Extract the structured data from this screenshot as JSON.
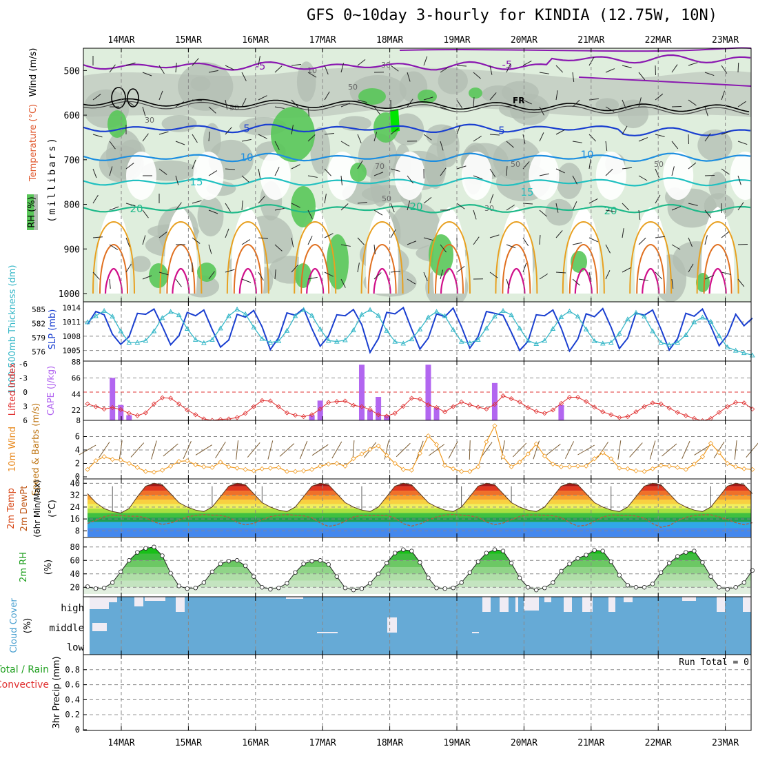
{
  "title": "GFS 0~10day 3-hourly for KINDIA (12.75W, 10N)",
  "colors": {
    "rh_light": "#dfeedd",
    "rh_gray": "#b2bcb2",
    "rh_green": "#59c659",
    "rh_bright": "#00e600",
    "purple": "#8a18b0",
    "blue_dark": "#1a3fd0",
    "blue_mid": "#1c8ee0",
    "cyan": "#20c0c0",
    "teal": "#20b98a",
    "orange": "#e8a020",
    "orange_dark": "#e07020",
    "magenta": "#d0108a",
    "slp": "#1a3fd0",
    "thickness": "#38b8c8",
    "cape": "#b266f0",
    "lifted": "#e03030",
    "wind": "#f09a20",
    "cloud": "#66aad6",
    "cloud_gap": "#f0ecf4"
  },
  "chart_data": [
    {
      "id": "upper_air",
      "type": "contour",
      "ylabel": "(millibars)",
      "legend": [
        "RH (%)",
        "Temperature (°C)",
        "Wind (m/s)"
      ],
      "yticks": [
        500,
        600,
        700,
        800,
        900,
        1000
      ],
      "ylim": [
        1000,
        450
      ],
      "rh_contour_labels": [
        "10",
        "30",
        "50",
        "70"
      ],
      "freezing_label": "FR",
      "isotherms": [
        {
          "label": "-5",
          "pressure_mb": 490
        },
        {
          "label": "5",
          "pressure_mb": 630
        },
        {
          "label": "10",
          "pressure_mb": 695
        },
        {
          "label": "15",
          "pressure_mb": 750
        },
        {
          "label": "20",
          "pressure_mb": 810
        }
      ]
    },
    {
      "id": "slp_thickness",
      "type": "line",
      "ylabel_left": "1000-500mb Thickness (dm)",
      "ylabel_right": "SLP (mb)",
      "yticks_left": [
        576,
        579,
        582,
        585
      ],
      "yticks_right": [
        1005,
        1008,
        1011,
        1014
      ],
      "series": [
        {
          "name": "SLP (mb)",
          "values": [
            1010.5,
            1013.2,
            1012.5,
            1008.4,
            1006.3,
            1007.9,
            1012.8,
            1012.6,
            1013.7,
            1010.1,
            1006.2,
            1008.1,
            1013.0,
            1012.3,
            1013.5,
            1009.4,
            1005.7,
            1007.2,
            1012.6,
            1012.0,
            1013.4,
            1010.0,
            1005.2,
            1007.7,
            1012.9,
            1012.4,
            1013.8,
            1009.6,
            1005.9,
            1008.0,
            1012.5,
            1012.3,
            1013.6,
            1010.4,
            1004.6,
            1007.5,
            1013.0,
            1012.7,
            1014.0,
            1009.5,
            1005.3,
            1007.6,
            1012.7,
            1012.1,
            1013.9,
            1010.0,
            1005.5,
            1007.9,
            1013.2,
            1012.8,
            1012.4,
            1008.8,
            1005.0,
            1006.9,
            1012.5,
            1012.3,
            1013.5,
            1009.7,
            1004.9,
            1007.4,
            1012.7,
            1012.1,
            1013.8,
            1009.9,
            1005.4,
            1007.6,
            1012.9,
            1012.4,
            1013.5,
            1009.5,
            1005.1,
            1007.5,
            1012.8,
            1012.2,
            1013.7,
            1010.1,
            1006.0,
            1008.2,
            1012.6,
            1010.2,
            1011.8
          ]
        },
        {
          "name": "1000-500mb Thickness (dm)",
          "values": [
            582.3,
            583.6,
            584.7,
            583.5,
            580.4,
            578.0,
            578.0,
            578.4,
            580.4,
            583.2,
            584.5,
            583.8,
            580.9,
            578.6,
            577.9,
            578.6,
            581.0,
            583.6,
            585.0,
            584.0,
            581.2,
            578.8,
            578.0,
            578.3,
            580.5,
            583.6,
            584.9,
            583.7,
            580.8,
            578.4,
            578.2,
            578.5,
            580.6,
            583.9,
            584.9,
            583.7,
            580.5,
            578.2,
            577.8,
            578.7,
            580.8,
            583.3,
            584.5,
            583.6,
            580.7,
            578.2,
            577.9,
            578.6,
            581.0,
            583.5,
            584.7,
            583.8,
            581.0,
            578.4,
            577.7,
            578.4,
            580.9,
            583.4,
            584.6,
            583.5,
            580.8,
            578.3,
            577.8,
            578.0,
            579.9,
            582.9,
            584.3,
            583.5,
            580.4,
            578.0,
            577.5,
            578.0,
            579.6,
            582.3,
            583.3,
            582.4,
            579.4,
            577.0,
            576.3,
            575.8,
            575.3
          ]
        }
      ]
    },
    {
      "id": "cape_li",
      "type": "bar+line",
      "ylabel_left": "Lifted Index",
      "ylabel_right": "CAPE (J/kg)",
      "yticks_left": [
        "-6",
        "-3",
        "0",
        "3",
        "6"
      ],
      "yticks_right": [
        8,
        22,
        44,
        66,
        88
      ],
      "cape_bars": [
        {
          "step": 3,
          "value": 66
        },
        {
          "step": 4,
          "value": 29
        },
        {
          "step": 5,
          "value": 15
        },
        {
          "step": 27,
          "value": 15
        },
        {
          "step": 28,
          "value": 35
        },
        {
          "step": 33,
          "value": 84
        },
        {
          "step": 34,
          "value": 22
        },
        {
          "step": 35,
          "value": 40
        },
        {
          "step": 36,
          "value": 15
        },
        {
          "step": 41,
          "value": 84
        },
        {
          "step": 42,
          "value": 25
        },
        {
          "step": 49,
          "value": 59
        },
        {
          "step": 57,
          "value": 29
        }
      ],
      "series": [
        {
          "name": "Lifted Index",
          "values": [
            2.5,
            3.1,
            3.6,
            3.3,
            3.7,
            4.5,
            5.0,
            4.4,
            2.5,
            1.2,
            1.3,
            2.5,
            3.8,
            4.8,
            5.7,
            6.0,
            5.8,
            5.7,
            5.4,
            4.5,
            3.1,
            1.8,
            1.9,
            3.1,
            4.4,
            4.9,
            5.2,
            4.8,
            3.6,
            2.2,
            2.0,
            1.9,
            2.8,
            3.1,
            3.7,
            4.8,
            5.1,
            4.5,
            3.0,
            1.3,
            1.5,
            2.7,
            3.3,
            4.2,
            3.1,
            2.1,
            2.7,
            3.2,
            3.6,
            2.6,
            0.8,
            1.4,
            2.1,
            3.3,
            4.1,
            4.5,
            3.8,
            2.4,
            1.1,
            1.1,
            2.0,
            3.2,
            4.2,
            4.8,
            5.4,
            5.2,
            4.2,
            3.1,
            2.3,
            2.5,
            3.4,
            4.3,
            5.0,
            5.6,
            6.1,
            5.6,
            4.3,
            3.1,
            2.2,
            2.3,
            3.6
          ]
        }
      ]
    },
    {
      "id": "wind10m",
      "type": "line",
      "ylabel": "10m Wind Speed & Barbs (m/s)",
      "yticks": [
        0,
        2,
        4,
        6
      ],
      "ylim": [
        0,
        8
      ],
      "series": [
        {
          "name": "10m Wind Speed (m/s)",
          "values": [
            1.1,
            2.4,
            3.0,
            2.6,
            2.5,
            2.0,
            1.4,
            0.8,
            0.7,
            1.0,
            1.6,
            2.3,
            2.4,
            1.8,
            1.5,
            1.4,
            2.2,
            1.5,
            1.3,
            1.1,
            0.9,
            1.2,
            1.3,
            1.4,
            0.8,
            0.8,
            0.9,
            1.1,
            1.6,
            1.9,
            2.0,
            1.6,
            2.7,
            3.4,
            4.1,
            4.6,
            3.2,
            2.0,
            1.1,
            1.0,
            3.5,
            6.1,
            4.8,
            1.7,
            1.2,
            0.8,
            0.8,
            1.5,
            5.2,
            7.6,
            3.0,
            1.5,
            2.2,
            3.4,
            4.9,
            3.1,
            1.9,
            1.5,
            1.5,
            1.6,
            1.6,
            2.7,
            3.6,
            2.7,
            1.3,
            1.2,
            0.9,
            0.8,
            1.2,
            1.7,
            1.6,
            1.4,
            1.1,
            1.9,
            3.0,
            5.0,
            3.6,
            2.0,
            1.5,
            1.2,
            1.1
          ]
        }
      ]
    },
    {
      "id": "temp2m",
      "type": "area",
      "ylabel": "2m Temp 2m DewPt (6hr Min/Max) (°C)",
      "yticks": [
        8,
        16,
        24,
        32,
        40
      ],
      "ylim": [
        4,
        42
      ],
      "series": [
        {
          "name": "2m Temp (°C)",
          "values": [
            33,
            27,
            23,
            21,
            20,
            23,
            31,
            38,
            40,
            39,
            33,
            27,
            24,
            22,
            21,
            24,
            31,
            38,
            40,
            39,
            33,
            27,
            24,
            22,
            21,
            24,
            31,
            38,
            40,
            39,
            33,
            27,
            24,
            22,
            21,
            24,
            31,
            38,
            40,
            39,
            33,
            27,
            24,
            22,
            21,
            24,
            31,
            38,
            40,
            39,
            33,
            27,
            24,
            22,
            21,
            24,
            31,
            38,
            40,
            39,
            33,
            27,
            24,
            22,
            21,
            24,
            31,
            38,
            40,
            39,
            33,
            27,
            24,
            22,
            21,
            24,
            31,
            38,
            40,
            39,
            33
          ]
        },
        {
          "name": "2m DewPt (°C)",
          "values": [
            13.0,
            15.1,
            17.5,
            18.7,
            18.3,
            17.9,
            17.8,
            16.9,
            14.0,
            12.3,
            13.3,
            15.1,
            17.4,
            18.4,
            18.9,
            18.6,
            18.5,
            17.2,
            13.7,
            12.0,
            13.1,
            15.4,
            17.6,
            18.5,
            18.9,
            18.5,
            18.1,
            16.8,
            13.3,
            11.0,
            12.0,
            14.4,
            17.4,
            18.4,
            18.2,
            18.5,
            18.3,
            16.6,
            12.8,
            11.2,
            12.6,
            15.2,
            17.4,
            18.7,
            19.0,
            18.6,
            18.1,
            17.2,
            13.9,
            12.1,
            13.2,
            15.5,
            17.7,
            18.7,
            18.7,
            18.5,
            18.2,
            17.0,
            13.6,
            11.2,
            11.8,
            14.4,
            17.3,
            18.7,
            18.5,
            18.5,
            18.0,
            16.5,
            12.9,
            10.4,
            11.6,
            14.8,
            17.1,
            18.4,
            18.8,
            18.8,
            17.4,
            15.6,
            13.5,
            12.1,
            13.5
          ]
        }
      ]
    },
    {
      "id": "rh2m",
      "type": "area",
      "ylabel": "2m RH (%)",
      "yticks": [
        20,
        40,
        60,
        80
      ],
      "ylim": [
        10,
        90
      ],
      "series": [
        {
          "name": "2m RH (%)",
          "values": [
            21,
            18,
            19,
            27,
            43,
            60,
            72,
            78,
            80,
            67,
            41,
            22,
            18,
            19,
            27,
            43,
            55,
            59,
            60,
            52,
            36,
            20,
            17,
            19,
            26,
            42,
            55,
            59,
            60,
            54,
            36,
            19,
            16,
            18,
            26,
            40,
            56,
            71,
            76,
            74,
            57,
            34,
            19,
            18,
            19,
            27,
            42,
            58,
            71,
            76,
            74,
            56,
            34,
            20,
            16,
            19,
            27,
            44,
            55,
            63,
            68,
            75,
            74,
            58,
            38,
            23,
            20,
            20,
            25,
            42,
            56,
            66,
            72,
            74,
            57,
            36,
            20,
            17,
            20,
            27,
            45
          ]
        }
      ]
    },
    {
      "id": "cloud",
      "type": "table",
      "ylabel": "Cloud Cover (%)",
      "levels": [
        "high",
        "middle",
        "low"
      ]
    },
    {
      "id": "precip",
      "type": "bar",
      "ylabel": "3hr Precip (mm)",
      "legend": [
        "Total / Rain",
        "Convective"
      ],
      "yticks": [
        "0",
        "0.2",
        "0.4",
        "0.6",
        "0.8"
      ],
      "ylim": [
        0,
        1
      ],
      "run_total": "Run Total = 0"
    }
  ],
  "dates": [
    "14MAR",
    "15MAR",
    "16MAR",
    "17MAR",
    "18MAR",
    "19MAR",
    "20MAR",
    "21MAR",
    "22MAR",
    "23MAR"
  ]
}
